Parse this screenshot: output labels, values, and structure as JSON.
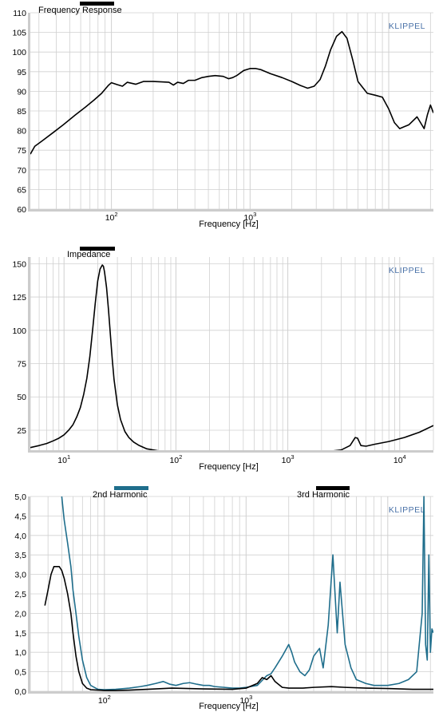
{
  "watermark": "KLIPPEL",
  "colors": {
    "black": "#000000",
    "teal": "#1f6e8c",
    "grid": "#d0d0d0",
    "axis_bar": "#cccccc",
    "watermark": "#4a72a8"
  },
  "chart_data": [
    {
      "type": "line",
      "title": "Frequency Response",
      "xlabel": "Frequency  [Hz]",
      "ylabel": "",
      "x_scale": "log",
      "xlim": [
        26,
        21000
      ],
      "ylim": [
        60,
        110
      ],
      "yticks": [
        "60",
        "65",
        "70",
        "75",
        "80",
        "85",
        "90",
        "95",
        "100",
        "105",
        "110"
      ],
      "xticks": [
        {
          "base": "10",
          "exp": "2",
          "value": 100
        },
        {
          "base": "10",
          "exp": "3",
          "value": 1000
        }
      ],
      "grid": true,
      "legend": [
        {
          "label": "Frequency Response",
          "color": "#000000"
        }
      ],
      "series": [
        {
          "name": "Frequency Response",
          "color": "#000000",
          "x": [
            26,
            28,
            32,
            38,
            45,
            55,
            65,
            75,
            85,
            95,
            100,
            110,
            120,
            130,
            150,
            170,
            200,
            230,
            260,
            280,
            300,
            330,
            360,
            400,
            450,
            500,
            560,
            640,
            700,
            750,
            800,
            900,
            1000,
            1100,
            1200,
            1400,
            1700,
            2000,
            2300,
            2600,
            2900,
            3200,
            3500,
            3800,
            4200,
            4600,
            5000,
            5500,
            6000,
            7000,
            8000,
            9000,
            10000,
            11000,
            12000,
            14000,
            16000,
            18000,
            19000,
            20000,
            21000
          ],
          "y": [
            74.0,
            76.0,
            77.5,
            79.5,
            81.5,
            84.0,
            86.0,
            87.8,
            89.5,
            91.5,
            92.2,
            91.7,
            91.3,
            92.3,
            91.8,
            92.5,
            92.5,
            92.4,
            92.3,
            91.6,
            92.3,
            92.0,
            92.8,
            92.8,
            93.5,
            93.8,
            94.0,
            93.8,
            93.2,
            93.5,
            94.0,
            95.3,
            95.8,
            95.8,
            95.5,
            94.5,
            93.5,
            92.5,
            91.5,
            90.8,
            91.3,
            93.0,
            96.5,
            100.5,
            104.0,
            105.2,
            103.5,
            98.0,
            92.5,
            89.5,
            89.0,
            88.5,
            85.5,
            82.0,
            80.5,
            81.5,
            83.5,
            80.5,
            84.0,
            86.5,
            84.5
          ]
        }
      ]
    },
    {
      "type": "line",
      "title": "Impedance",
      "xlabel": "Frequency  [Hz]",
      "ylabel": "",
      "x_scale": "log",
      "xlim": [
        5,
        20000
      ],
      "ylim": [
        10,
        155
      ],
      "yticks": [
        "25",
        "50",
        "75",
        "100",
        "125",
        "150"
      ],
      "xticks": [
        {
          "base": "10",
          "exp": "1",
          "value": 10
        },
        {
          "base": "10",
          "exp": "2",
          "value": 100
        },
        {
          "base": "10",
          "exp": "3",
          "value": 1000
        },
        {
          "base": "10",
          "exp": "4",
          "value": 10000
        }
      ],
      "grid": true,
      "legend": [
        {
          "label": "Impedance",
          "color": "#000000"
        }
      ],
      "series": [
        {
          "name": "Impedance",
          "color": "#000000",
          "x": [
            5,
            6,
            7,
            8,
            9,
            10,
            11,
            12,
            13,
            14,
            15,
            16,
            17,
            18,
            19,
            20,
            21,
            22,
            22.5,
            23,
            24,
            25,
            26,
            27,
            28,
            30,
            32,
            35,
            38,
            42,
            47,
            55,
            70,
            90,
            120,
            170,
            250,
            400,
            700,
            1200,
            2000,
            3000,
            3600,
            4000,
            4200,
            4500,
            5000,
            6000,
            8000,
            11000,
            15000,
            20000
          ],
          "y": [
            12.0,
            13.5,
            15.0,
            17.0,
            19.0,
            21.5,
            25.0,
            29.0,
            35.0,
            42.0,
            52.0,
            64.0,
            80.0,
            100.0,
            120.0,
            137.0,
            146.0,
            149.0,
            148.0,
            144.0,
            132.0,
            115.0,
            96.0,
            78.0,
            63.0,
            44.0,
            33.0,
            24.0,
            19.5,
            16.0,
            13.5,
            11.0,
            9.5,
            8.5,
            7.8,
            7.3,
            7.0,
            7.0,
            7.2,
            7.6,
            8.5,
            10.2,
            13.5,
            19.5,
            19.0,
            13.5,
            13.0,
            14.5,
            16.5,
            19.5,
            23.5,
            28.5
          ]
        }
      ]
    },
    {
      "type": "line",
      "title": "",
      "xlabel": "Frequency  [Hz]",
      "ylabel": "",
      "x_scale": "log",
      "xlim": [
        30,
        21000
      ],
      "ylim": [
        0,
        5
      ],
      "yticks": [
        "0,0",
        "0,5",
        "1,0",
        "1,5",
        "2,0",
        "2,5",
        "3,0",
        "3,5",
        "4,0",
        "4,5",
        "5,0"
      ],
      "xticks": [
        {
          "base": "10",
          "exp": "2",
          "value": 100
        },
        {
          "base": "10",
          "exp": "3",
          "value": 1000
        }
      ],
      "grid": true,
      "legend": [
        {
          "label": "2nd Harmonic",
          "color": "#1f6e8c"
        },
        {
          "label": "3rd Harmonic",
          "color": "#000000"
        }
      ],
      "series": [
        {
          "name": "2nd Harmonic",
          "color": "#1f6e8c",
          "x": [
            50,
            52,
            55,
            58,
            60,
            63,
            66,
            70,
            75,
            80,
            90,
            100,
            120,
            150,
            180,
            200,
            230,
            260,
            290,
            320,
            360,
            400,
            450,
            500,
            550,
            600,
            700,
            800,
            900,
            1000,
            1200,
            1400,
            1500,
            1600,
            1800,
            2000,
            2100,
            2200,
            2400,
            2600,
            2800,
            3000,
            3300,
            3500,
            3800,
            4100,
            4200,
            4400,
            4600,
            5000,
            5500,
            6000,
            7000,
            8000,
            10000,
            12000,
            14000,
            16000,
            17500,
            18000,
            18500,
            19000,
            19500,
            20000,
            20500,
            21000
          ],
          "y": [
            5.0,
            4.4,
            3.8,
            3.2,
            2.6,
            2.0,
            1.4,
            0.8,
            0.35,
            0.15,
            0.05,
            0.04,
            0.05,
            0.08,
            0.12,
            0.15,
            0.2,
            0.25,
            0.18,
            0.15,
            0.2,
            0.22,
            0.18,
            0.15,
            0.15,
            0.12,
            0.1,
            0.08,
            0.08,
            0.1,
            0.15,
            0.4,
            0.45,
            0.6,
            0.9,
            1.2,
            1.0,
            0.75,
            0.5,
            0.4,
            0.55,
            0.9,
            1.1,
            0.6,
            1.7,
            3.5,
            2.8,
            1.5,
            2.8,
            1.2,
            0.6,
            0.3,
            0.2,
            0.15,
            0.15,
            0.2,
            0.3,
            0.5,
            2.0,
            5.0,
            1.2,
            0.8,
            3.5,
            1.0,
            1.6,
            1.5
          ]
        },
        {
          "name": "3rd Harmonic",
          "color": "#000000",
          "x": [
            38,
            40,
            42,
            44,
            46,
            48,
            50,
            52,
            55,
            58,
            60,
            63,
            66,
            70,
            75,
            80,
            90,
            100,
            120,
            150,
            200,
            300,
            500,
            800,
            1000,
            1200,
            1300,
            1400,
            1500,
            1600,
            1800,
            2000,
            2500,
            3000,
            4000,
            5000,
            7000,
            10000,
            15000,
            20000,
            21000
          ],
          "y": [
            2.2,
            2.6,
            3.0,
            3.2,
            3.2,
            3.2,
            3.1,
            2.9,
            2.5,
            2.0,
            1.5,
            0.9,
            0.5,
            0.2,
            0.08,
            0.04,
            0.03,
            0.02,
            0.02,
            0.03,
            0.05,
            0.08,
            0.06,
            0.05,
            0.08,
            0.2,
            0.35,
            0.3,
            0.4,
            0.25,
            0.1,
            0.08,
            0.08,
            0.1,
            0.12,
            0.1,
            0.08,
            0.07,
            0.05,
            0.05,
            0.05
          ]
        }
      ]
    }
  ]
}
